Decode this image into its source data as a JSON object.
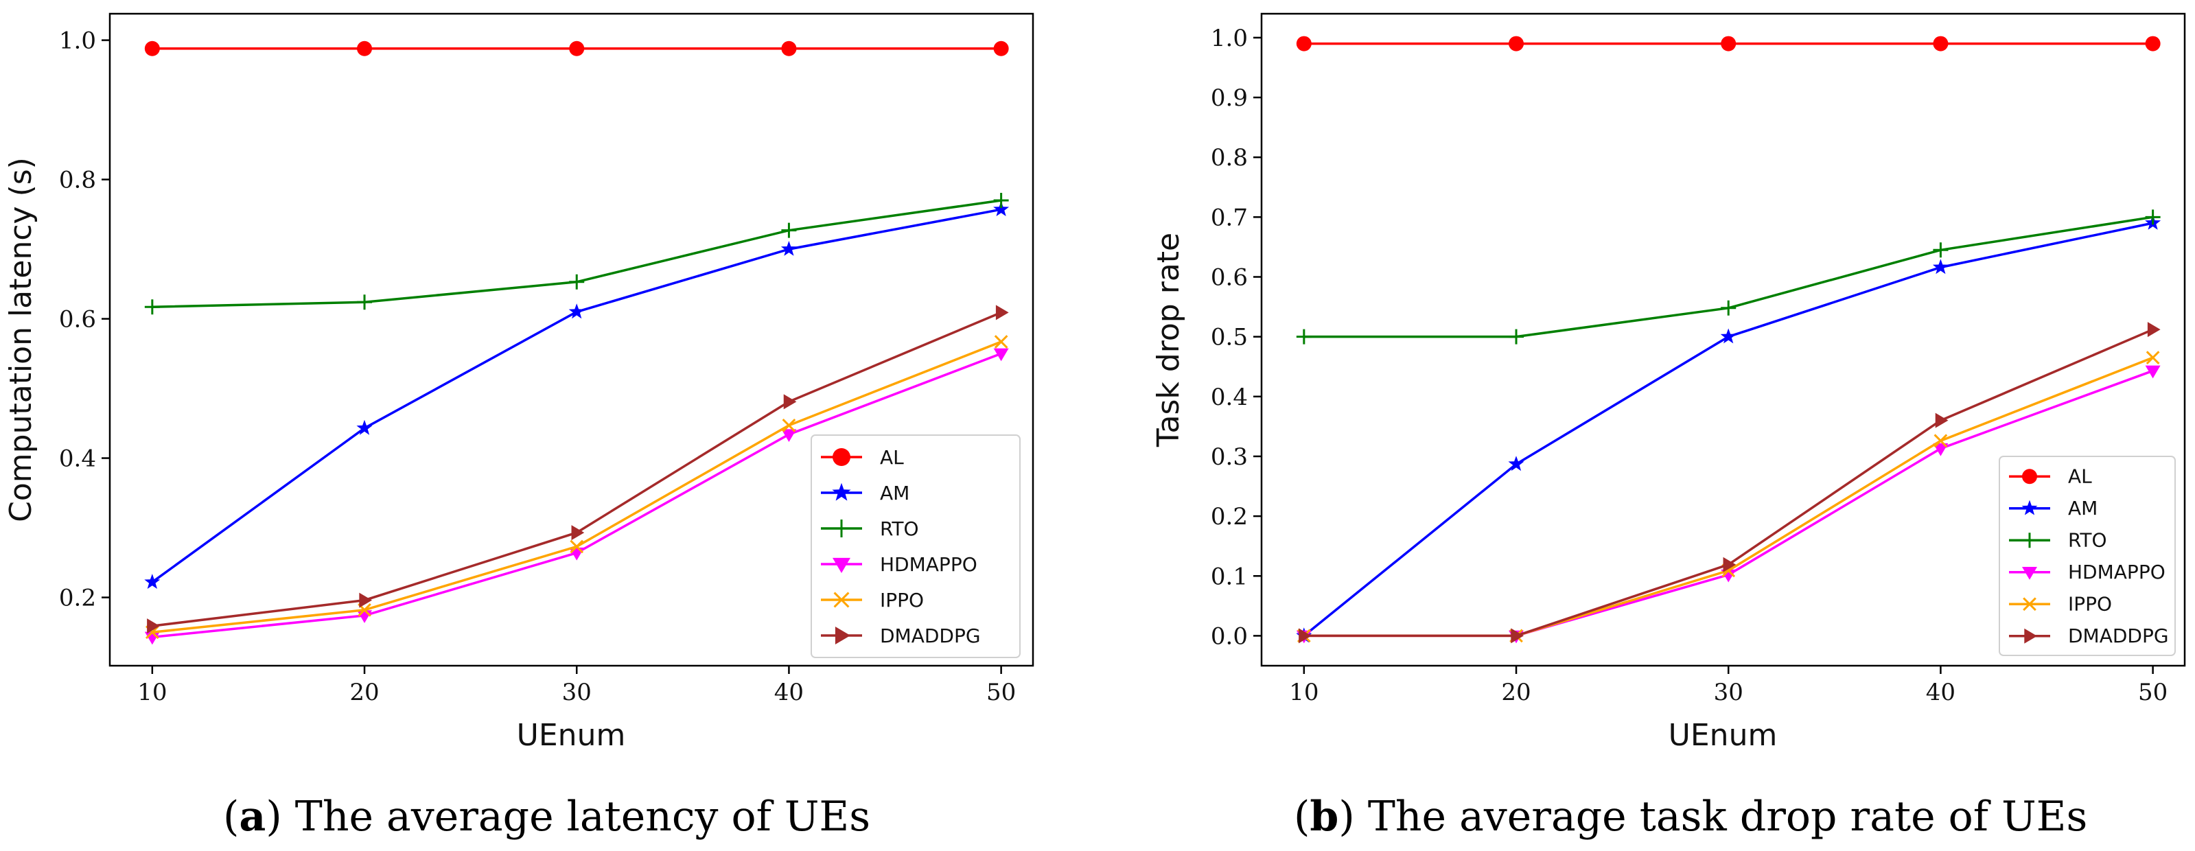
{
  "chart_data": [
    {
      "type": "line",
      "panel": "a",
      "xlabel": "UEnum",
      "ylabel": "Computation latency (s)",
      "x": [
        10,
        20,
        30,
        40,
        50
      ],
      "xticks": [
        "10",
        "20",
        "30",
        "40",
        "50"
      ],
      "xlim": [
        8,
        51.5
      ],
      "ylim": [
        0.102,
        1.038
      ],
      "yticks": [
        "0.2",
        "0.4",
        "0.6",
        "0.8",
        "1.0"
      ],
      "ytick_values": [
        0.2,
        0.4,
        0.6,
        0.8,
        1.0
      ],
      "grid": false,
      "legend_position": "lower-right",
      "series": [
        {
          "name": "AL",
          "color": "#ff0000",
          "marker": "circle",
          "values": [
            0.988,
            0.988,
            0.988,
            0.988,
            0.988
          ]
        },
        {
          "name": "AM",
          "color": "#0000ff",
          "marker": "star",
          "values": [
            0.222,
            0.443,
            0.61,
            0.7,
            0.757
          ]
        },
        {
          "name": "RTO",
          "color": "#008000",
          "marker": "plus",
          "values": [
            0.617,
            0.624,
            0.653,
            0.727,
            0.77
          ]
        },
        {
          "name": "HDMAPPO",
          "color": "#ff00ff",
          "marker": "triangle-down",
          "values": [
            0.143,
            0.174,
            0.264,
            0.434,
            0.55
          ]
        },
        {
          "name": "IPPO",
          "color": "#ffa500",
          "marker": "x",
          "values": [
            0.15,
            0.182,
            0.273,
            0.447,
            0.567
          ]
        },
        {
          "name": "DMADDPG",
          "color": "#a52a2a",
          "marker": "triangle-right",
          "values": [
            0.159,
            0.196,
            0.293,
            0.481,
            0.609
          ]
        }
      ],
      "caption_bold": "a",
      "caption_text": " The average latency of UEs"
    },
    {
      "type": "line",
      "panel": "b",
      "xlabel": "UEnum",
      "ylabel": "Task drop rate",
      "x": [
        10,
        20,
        30,
        40,
        50
      ],
      "xticks": [
        "10",
        "20",
        "30",
        "40",
        "50"
      ],
      "xlim": [
        8,
        51.5
      ],
      "ylim": [
        -0.05,
        1.04
      ],
      "yticks": [
        "0.0",
        "0.1",
        "0.2",
        "0.3",
        "0.4",
        "0.5",
        "0.6",
        "0.7",
        "0.8",
        "0.9",
        "1.0"
      ],
      "ytick_values": [
        0.0,
        0.1,
        0.2,
        0.3,
        0.4,
        0.5,
        0.6,
        0.7,
        0.8,
        0.9,
        1.0
      ],
      "grid": false,
      "legend_position": "lower-right",
      "series": [
        {
          "name": "AL",
          "color": "#ff0000",
          "marker": "circle",
          "values": [
            0.99,
            0.99,
            0.99,
            0.99,
            0.99
          ]
        },
        {
          "name": "AM",
          "color": "#0000ff",
          "marker": "star",
          "values": [
            0.0,
            0.287,
            0.5,
            0.616,
            0.69
          ]
        },
        {
          "name": "RTO",
          "color": "#008000",
          "marker": "plus",
          "values": [
            0.5,
            0.5,
            0.548,
            0.645,
            0.7
          ]
        },
        {
          "name": "HDMAPPO",
          "color": "#ff00ff",
          "marker": "triangle-down",
          "values": [
            0.0,
            0.0,
            0.102,
            0.313,
            0.443
          ]
        },
        {
          "name": "IPPO",
          "color": "#ffa500",
          "marker": "x",
          "values": [
            0.0,
            0.0,
            0.109,
            0.326,
            0.465
          ]
        },
        {
          "name": "DMADDPG",
          "color": "#a52a2a",
          "marker": "triangle-right",
          "values": [
            0.0,
            0.0,
            0.119,
            0.36,
            0.512
          ]
        }
      ],
      "caption_bold": "b",
      "caption_text": " The average task drop rate of UEs"
    }
  ]
}
